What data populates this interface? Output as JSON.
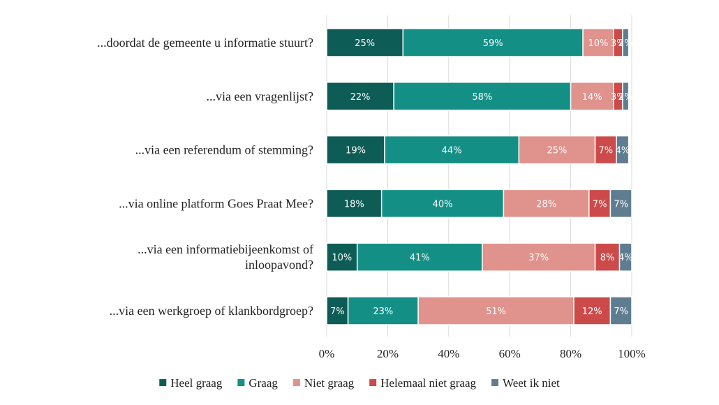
{
  "chart_data": {
    "type": "bar",
    "orientation": "horizontal",
    "stacked": true,
    "categories": [
      [
        "...doordat de gemeente u informatie stuurt?"
      ],
      [
        "...via een vragenlijst?"
      ],
      [
        "...via een referendum of stemming?"
      ],
      [
        "...via online platform Goes Praat Mee?"
      ],
      [
        "...via een informatiebijeenkomst of",
        "inloopavond?"
      ],
      [
        "...via een werkgroep of klankbordgroep?"
      ]
    ],
    "series": [
      {
        "name": "Heel graag",
        "color": "#0d5c55",
        "values": [
          25,
          22,
          19,
          18,
          10,
          7
        ]
      },
      {
        "name": "Graag",
        "color": "#138f86",
        "values": [
          59,
          58,
          44,
          40,
          41,
          23
        ]
      },
      {
        "name": "Niet graag",
        "color": "#e0928d",
        "values": [
          10,
          14,
          25,
          28,
          37,
          51
        ]
      },
      {
        "name": "Helemaal niet graag",
        "color": "#cc4a4a",
        "values": [
          3,
          3,
          7,
          7,
          8,
          12
        ]
      },
      {
        "name": "Weet ik niet",
        "color": "#5f7d91",
        "values": [
          2,
          2,
          4,
          7,
          4,
          7
        ]
      }
    ],
    "xlim": [
      0,
      100
    ],
    "xticks": [
      "0%",
      "20%",
      "40%",
      "60%",
      "80%",
      "100%"
    ],
    "unit": "%",
    "grid": true,
    "legend_position": "bottom"
  }
}
